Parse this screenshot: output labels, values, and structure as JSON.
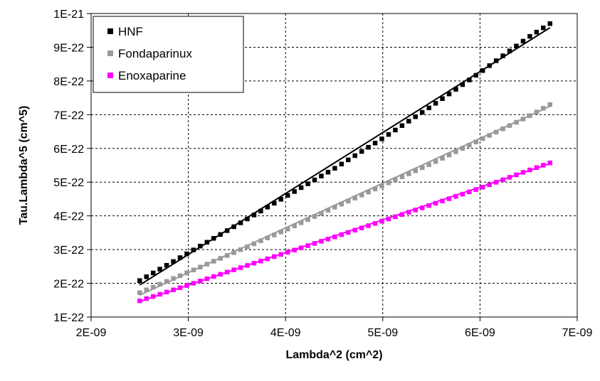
{
  "chart_data": {
    "type": "scatter",
    "xlabel": "Lambda^2 (cm^2)",
    "ylabel": "Tau.Lambda^5 (cm^5)",
    "xlim": [
      2e-09,
      7e-09
    ],
    "ylim": [
      1e-22,
      1e-21
    ],
    "x_ticks": [
      "2E-09",
      "3E-09",
      "4E-09",
      "5E-09",
      "6E-09",
      "7E-09"
    ],
    "y_ticks": [
      "1E-22",
      "2E-22",
      "3E-22",
      "4E-22",
      "5E-22",
      "6E-22",
      "7E-22",
      "8E-22",
      "9E-22",
      "1E-21"
    ],
    "grid": true,
    "legend_position": "top-left",
    "series": [
      {
        "name": "HNF",
        "color": "#000000",
        "x": [
          2.5e-09,
          3e-09,
          3.5e-09,
          4e-09,
          4.5e-09,
          5e-09,
          5.5e-09,
          6e-09,
          6.5e-09,
          6.72e-09
        ],
        "y": [
          2.08e-22,
          2.9e-22,
          3.73e-22,
          4.57e-22,
          5.4e-22,
          6.3e-22,
          7.25e-22,
          8.25e-22,
          9.3e-22,
          9.7e-22
        ],
        "fit": {
          "x": [
            2.5e-09,
            6.72e-09
          ],
          "y": [
            1.95e-22,
            9.58e-22
          ]
        }
      },
      {
        "name": "Fondaparinux",
        "color": "#999999",
        "x": [
          2.5e-09,
          3e-09,
          3.5e-09,
          4e-09,
          4.5e-09,
          5e-09,
          5.5e-09,
          6e-09,
          6.5e-09,
          6.72e-09
        ],
        "y": [
          1.72e-22,
          2.33e-22,
          2.95e-22,
          3.58e-22,
          4.25e-22,
          4.9e-22,
          5.55e-22,
          6.25e-22,
          6.95e-22,
          7.3e-22
        ],
        "fit": {
          "x": [
            2.5e-09,
            6.72e-09
          ],
          "y": [
            1.65e-22,
            7.25e-22
          ]
        }
      },
      {
        "name": "Enoxaparine",
        "color": "#FF00FF",
        "x": [
          2.5e-09,
          3e-09,
          3.5e-09,
          4e-09,
          4.5e-09,
          5e-09,
          5.5e-09,
          6e-09,
          6.5e-09,
          6.72e-09
        ],
        "y": [
          1.48e-22,
          1.95e-22,
          2.43e-22,
          2.9e-22,
          3.37e-22,
          3.85e-22,
          4.33e-22,
          4.82e-22,
          5.35e-22,
          5.57e-22
        ],
        "fit": {
          "x": [
            2.5e-09,
            6.72e-09
          ],
          "y": [
            1.46e-22,
            5.55e-22
          ]
        }
      }
    ]
  }
}
